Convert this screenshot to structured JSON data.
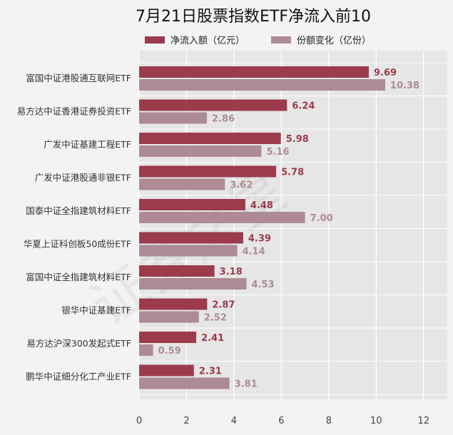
{
  "chart_data": {
    "type": "bar",
    "orientation": "horizontal",
    "title": "7月21日股票指数ETF净流入前10",
    "categories": [
      "富国中证港股通互联网ETF",
      "易方达中证香港证券投资ETF",
      "广发中证基建工程ETF",
      "广发中证港股通非银ETF",
      "国泰中证全指建筑材料ETF",
      "华夏上证科创板50成份ETF",
      "富国中证全指建筑材料ETF",
      "银华中证基建ETF",
      "易方达沪深300发起式ETF",
      "鹏华中证细分化工产业ETF"
    ],
    "series": [
      {
        "name": "净流入额（亿元）",
        "color": "#9b3b4c",
        "values": [
          9.69,
          6.24,
          5.98,
          5.78,
          4.48,
          4.39,
          3.18,
          2.87,
          2.41,
          2.31
        ],
        "labels": [
          "9.69",
          "6.24",
          "5.98",
          "5.78",
          "4.48",
          "4.39",
          "3.18",
          "2.87",
          "2.41",
          "2.31"
        ]
      },
      {
        "name": "份额变化（亿份）",
        "color": "#ad8b94",
        "values": [
          10.38,
          2.86,
          5.16,
          3.62,
          7.0,
          4.14,
          4.53,
          2.52,
          0.59,
          3.81
        ],
        "labels": [
          "10.38",
          "2.86",
          "5.16",
          "3.62",
          "7.00",
          "4.14",
          "4.53",
          "2.52",
          "0.59",
          "3.81"
        ]
      }
    ],
    "xticks": [
      "0",
      "2",
      "4",
      "6",
      "8",
      "10",
      "12"
    ],
    "xlim": [
      0,
      13
    ],
    "grid": true,
    "legend_position": "top",
    "watermark": "证券之星"
  }
}
